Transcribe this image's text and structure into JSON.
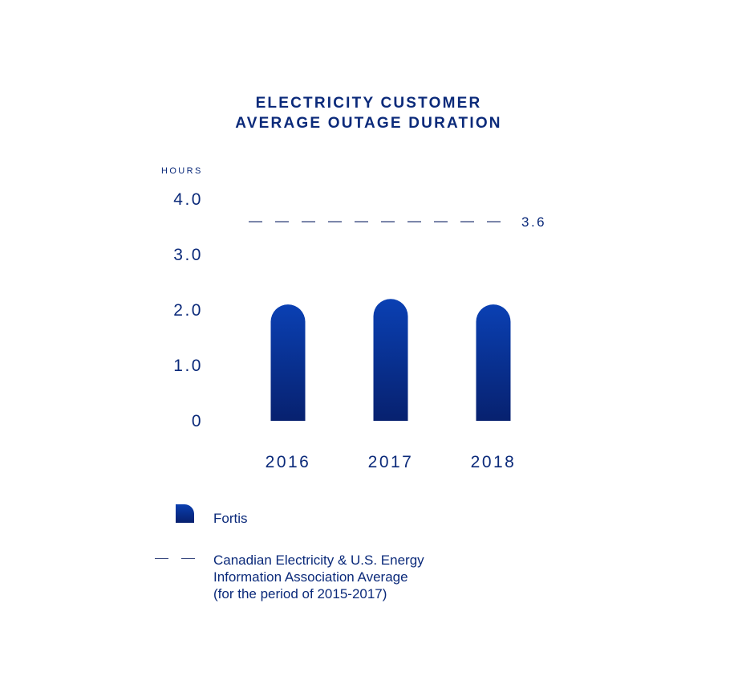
{
  "title_lines": [
    "ELECTRICITY CUSTOMER",
    "AVERAGE OUTAGE DURATION"
  ],
  "colors": {
    "text": "#0b2a7a",
    "bar_top": "#0a40b3",
    "bar_bottom": "#07216f",
    "dash": "#3a4a80"
  },
  "legend": {
    "fortis": "Fortis",
    "average_lines": [
      "Canadian Electricity & U.S. Energy",
      "Information Association Average",
      "(for the period of 2015-2017)"
    ]
  },
  "chart_data": {
    "type": "bar",
    "title": "ELECTRICITY CUSTOMER AVERAGE OUTAGE DURATION",
    "ylabel": "HOURS",
    "xlabel": "",
    "categories": [
      "2016",
      "2017",
      "2018"
    ],
    "series": [
      {
        "name": "Fortis",
        "values": [
          2.1,
          2.2,
          2.1
        ]
      }
    ],
    "reference_line": {
      "name": "Canadian Electricity & U.S. Energy Information Association Average (for the period of 2015-2017)",
      "value": 3.6,
      "label": "3.6",
      "style": "dashed"
    },
    "y_ticks": [
      {
        "value": 0,
        "label": "0"
      },
      {
        "value": 1,
        "label": "1.0"
      },
      {
        "value": 2,
        "label": "2.0"
      },
      {
        "value": 3,
        "label": "3.0"
      },
      {
        "value": 4,
        "label": "4.0"
      }
    ],
    "ylim": [
      0,
      4
    ],
    "grid": false,
    "legend_position": "bottom-left"
  }
}
